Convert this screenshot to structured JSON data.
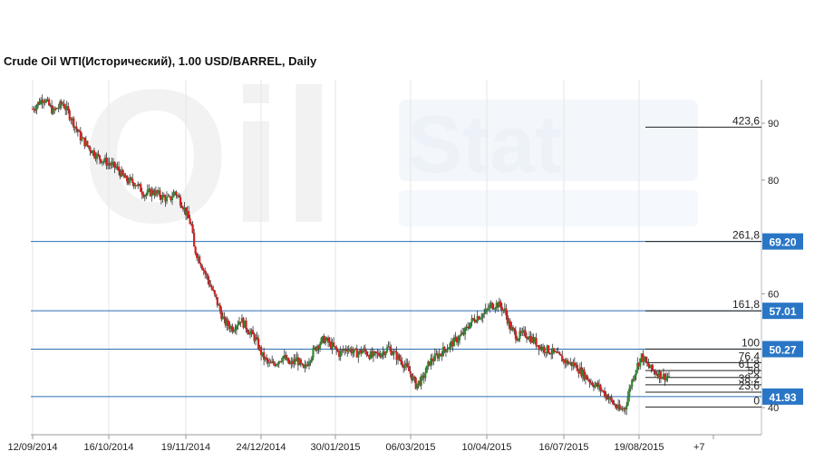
{
  "chart_data": {
    "type": "candlestick",
    "title": "Crude Oil WTI(Исторический), 1.00 USD/BARREL, Daily",
    "watermark": "OilStat",
    "ylim": [
      35,
      95
    ],
    "y_ticks": [
      90,
      80,
      60,
      40
    ],
    "x_tick_labels": [
      "12/09/2014",
      "16/10/2014",
      "19/11/2014",
      "24/12/2014",
      "30/01/2015",
      "06/03/2015",
      "10/04/2015",
      "16/07/2015",
      "19/08/2015",
      "+7"
    ],
    "price_levels": [
      {
        "value": 69.2,
        "label": "69.20"
      },
      {
        "value": 57.01,
        "label": "57.01"
      },
      {
        "value": 50.27,
        "label": "50.27"
      },
      {
        "value": 41.93,
        "label": "41.93"
      }
    ],
    "fibonacci": [
      {
        "label": "423,6",
        "value": 89.3
      },
      {
        "label": "261,8",
        "value": 69.2
      },
      {
        "label": "161,8",
        "value": 57.0
      },
      {
        "label": "100",
        "value": 50.3
      },
      {
        "label": "76,4",
        "value": 47.9
      },
      {
        "label": "61,8",
        "value": 46.5
      },
      {
        "label": "50",
        "value": 45.3
      },
      {
        "label": "38,2",
        "value": 44.0
      },
      {
        "label": "23,6",
        "value": 42.7
      },
      {
        "label": "0",
        "value": 40.1
      }
    ],
    "close_path": [
      [
        0,
        92.5
      ],
      [
        8,
        94.5
      ],
      [
        15,
        92
      ],
      [
        22,
        93.5
      ],
      [
        28,
        91
      ],
      [
        35,
        87.5
      ],
      [
        42,
        85.5
      ],
      [
        48,
        84
      ],
      [
        55,
        83
      ],
      [
        62,
        82
      ],
      [
        68,
        80
      ],
      [
        75,
        79.5
      ],
      [
        82,
        77.5
      ],
      [
        88,
        78
      ],
      [
        95,
        77
      ],
      [
        100,
        76.5
      ],
      [
        104,
        78
      ],
      [
        110,
        75.5
      ],
      [
        116,
        72
      ],
      [
        118,
        68
      ],
      [
        122,
        66
      ],
      [
        128,
        62.5
      ],
      [
        134,
        59
      ],
      [
        140,
        55
      ],
      [
        146,
        54
      ],
      [
        152,
        55.5
      ],
      [
        158,
        53.5
      ],
      [
        163,
        52
      ],
      [
        168,
        49
      ],
      [
        173,
        47.5
      ],
      [
        178,
        48
      ],
      [
        183,
        49
      ],
      [
        188,
        47.5
      ],
      [
        193,
        48.5
      ],
      [
        198,
        46.5
      ],
      [
        203,
        49
      ],
      [
        208,
        51
      ],
      [
        213,
        52
      ],
      [
        218,
        51
      ],
      [
        224,
        49.5
      ],
      [
        230,
        50.5
      ],
      [
        236,
        49.5
      ],
      [
        242,
        50
      ],
      [
        248,
        49
      ],
      [
        254,
        49.5
      ],
      [
        260,
        50.5
      ],
      [
        266,
        49
      ],
      [
        272,
        47.5
      ],
      [
        276,
        46
      ],
      [
        280,
        44
      ],
      [
        285,
        45
      ],
      [
        290,
        48
      ],
      [
        295,
        49
      ],
      [
        300,
        50
      ],
      [
        305,
        51
      ],
      [
        310,
        52
      ],
      [
        315,
        53
      ],
      [
        320,
        55
      ],
      [
        325,
        56
      ],
      [
        330,
        56.5
      ],
      [
        335,
        58
      ],
      [
        340,
        58.2
      ],
      [
        345,
        57
      ],
      [
        349,
        54
      ],
      [
        354,
        52.5
      ],
      [
        360,
        53
      ],
      [
        365,
        52
      ],
      [
        372,
        50.5
      ],
      [
        378,
        50
      ],
      [
        384,
        49
      ],
      [
        390,
        48
      ],
      [
        396,
        47.5
      ],
      [
        402,
        46
      ],
      [
        408,
        44.5
      ],
      [
        414,
        43.5
      ],
      [
        420,
        42
      ],
      [
        425,
        40.5
      ],
      [
        429,
        39.5
      ],
      [
        433,
        40
      ],
      [
        437,
        44
      ],
      [
        441,
        47
      ],
      [
        445,
        49
      ],
      [
        449,
        47.5
      ],
      [
        453,
        46.5
      ],
      [
        457,
        46
      ],
      [
        461,
        45.5
      ],
      [
        465,
        45.5
      ]
    ]
  }
}
